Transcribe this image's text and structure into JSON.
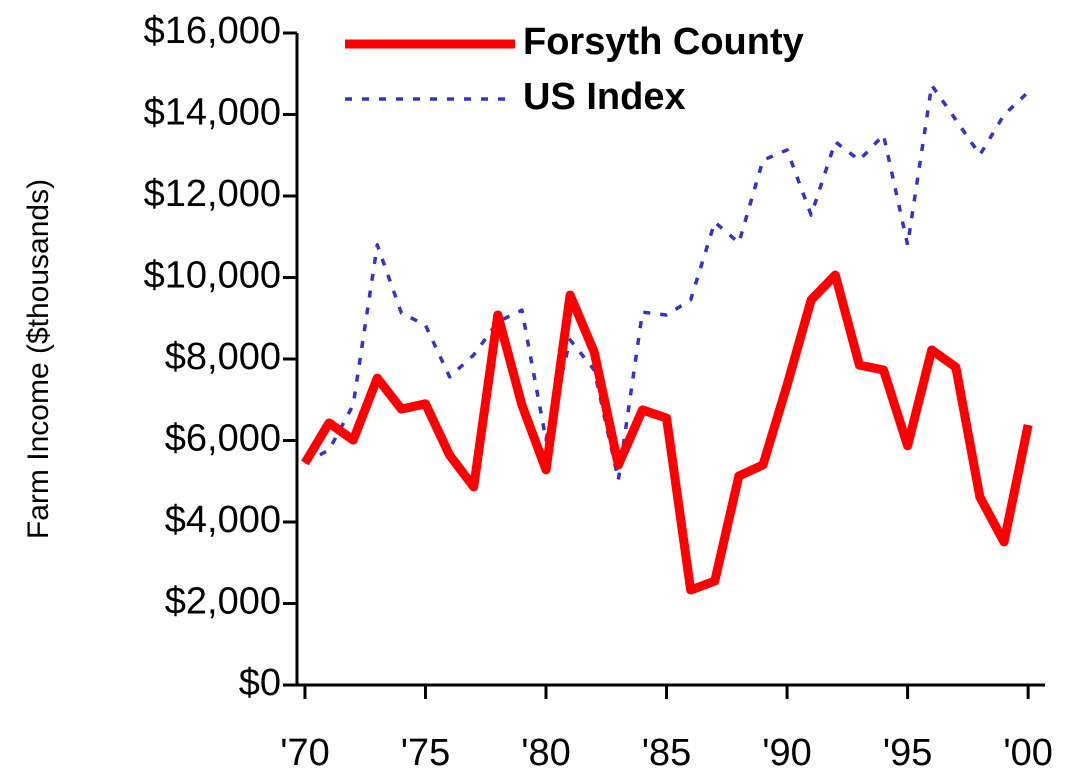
{
  "chart_data": {
    "type": "line",
    "y_label": "Farm Income ($thousands)",
    "x": [
      1970,
      1971,
      1972,
      1973,
      1974,
      1975,
      1976,
      1977,
      1978,
      1979,
      1980,
      1981,
      1982,
      1983,
      1984,
      1985,
      1986,
      1987,
      1988,
      1989,
      1990,
      1991,
      1992,
      1993,
      1994,
      1995,
      1996,
      1997,
      1998,
      1999,
      2000
    ],
    "series": [
      {
        "name": "Forsyth County",
        "color": "#ff0000",
        "values": [
          5450,
          6430,
          6010,
          7530,
          6770,
          6900,
          5640,
          4860,
          9080,
          6870,
          5280,
          9570,
          8170,
          5400,
          6750,
          6550,
          2330,
          2550,
          5130,
          5400,
          7360,
          9450,
          10060,
          7850,
          7730,
          5870,
          8220,
          7800,
          4610,
          3510,
          6380
        ]
      },
      {
        "name": "US Index",
        "color": "#3333cc",
        "values": [
          5450,
          5770,
          6870,
          10800,
          9130,
          8830,
          7560,
          8100,
          8910,
          9200,
          6010,
          8470,
          7730,
          5030,
          9150,
          9080,
          9450,
          11360,
          10850,
          12880,
          13130,
          11530,
          13330,
          12880,
          13500,
          10800,
          14720,
          13870,
          13010,
          13990,
          14550
        ]
      }
    ],
    "xlim": [
      1969.67,
      2000.7
    ],
    "xticks": [
      {
        "value": 1970,
        "label": "'70"
      },
      {
        "value": 1975,
        "label": "'75"
      },
      {
        "value": 1980,
        "label": "'80"
      },
      {
        "value": 1985,
        "label": "'85"
      },
      {
        "value": 1990,
        "label": "'90"
      },
      {
        "value": 1995,
        "label": "'95"
      },
      {
        "value": 2000,
        "label": "'00"
      }
    ],
    "ylim": [
      0,
      16000
    ],
    "yticks": [
      {
        "value": 0,
        "label": "$0"
      },
      {
        "value": 2000,
        "label": "$2,000"
      },
      {
        "value": 4000,
        "label": "$4,000"
      },
      {
        "value": 6000,
        "label": "$6,000"
      },
      {
        "value": 8000,
        "label": "$8,000"
      },
      {
        "value": 10000,
        "label": "$10,000"
      },
      {
        "value": 12000,
        "label": "$12,000"
      },
      {
        "value": 14000,
        "label": "$14,000"
      },
      {
        "value": 16000,
        "label": "$16,000"
      }
    ]
  }
}
